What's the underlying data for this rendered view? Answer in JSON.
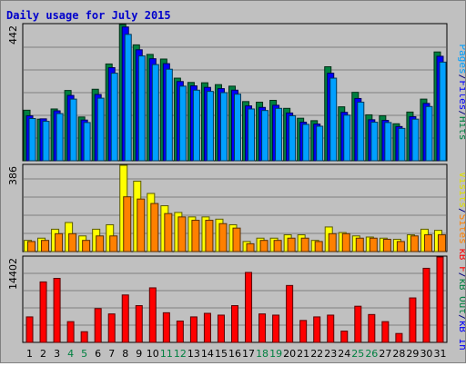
{
  "chart_data": {
    "type": "bar",
    "title": "Daily usage for July 2015",
    "categories": [
      "1",
      "2",
      "3",
      "4",
      "5",
      "6",
      "7",
      "8",
      "9",
      "10",
      "11",
      "12",
      "13",
      "14",
      "15",
      "16",
      "17",
      "18",
      "19",
      "20",
      "21",
      "22",
      "23",
      "24",
      "25",
      "26",
      "27",
      "28",
      "29",
      "30",
      "31"
    ],
    "weekend_days": [
      "4",
      "5",
      "11",
      "12",
      "18",
      "19",
      "25",
      "26"
    ],
    "panels": [
      {
        "name": "top",
        "max_label": "442",
        "ylim": [
          0,
          442
        ],
        "right_label_parts": [
          {
            "text": "Pages",
            "color": "#00a0ff"
          },
          {
            "text": "/",
            "color": "#000080"
          },
          {
            "text": "Files",
            "color": "#0000ff"
          },
          {
            "text": "/",
            "color": "#000080"
          },
          {
            "text": "Hits",
            "color": "#008040"
          }
        ],
        "series": [
          {
            "name": "Hits",
            "color": "#008040",
            "values": [
              164,
              135,
              168,
              228,
              142,
              232,
              314,
              442,
              376,
              345,
              330,
              268,
              254,
              253,
              247,
              242,
              192,
              190,
              196,
              170,
              138,
              130,
              305,
              175,
              222,
              149,
              146,
              120,
              158,
              200,
              353
            ]
          },
          {
            "name": "Files",
            "color": "#0000ff",
            "values": [
              146,
              136,
              162,
              212,
              132,
              215,
              302,
              434,
              360,
              331,
              315,
              257,
              243,
              238,
              234,
              229,
              178,
              173,
              180,
              155,
              125,
              119,
              284,
              157,
              202,
              133,
              131,
              111,
              143,
              186,
              339
            ]
          },
          {
            "name": "Pages",
            "color": "#00a0ff",
            "values": [
              137,
              128,
              153,
              200,
              124,
              203,
              284,
              410,
              340,
              312,
              297,
              242,
              229,
              225,
              221,
              216,
              168,
              163,
              170,
              146,
              118,
              112,
              268,
              148,
              190,
              125,
              124,
              105,
              135,
              176,
              320
            ]
          }
        ]
      },
      {
        "name": "middle",
        "max_label": "386",
        "ylim": [
          0,
          386
        ],
        "right_label_parts": [
          {
            "text": "Visits",
            "color": "#e0e000"
          },
          {
            "text": "/",
            "color": "#000080"
          },
          {
            "text": "Sites",
            "color": "#ff8000"
          }
        ],
        "series": [
          {
            "name": "Visits",
            "color": "#ffff00",
            "values": [
              50,
              60,
              100,
              130,
              70,
              100,
              120,
              386,
              315,
              260,
              205,
              175,
              155,
              155,
              145,
              120,
              45,
              60,
              60,
              75,
              75,
              50,
              110,
              85,
              70,
              65,
              60,
              55,
              75,
              100,
              95
            ]
          },
          {
            "name": "Sites",
            "color": "#ff8000",
            "values": [
              45,
              50,
              80,
              80,
              50,
              70,
              70,
              245,
              235,
              215,
              170,
              155,
              140,
              140,
              125,
              105,
              35,
              50,
              50,
              60,
              60,
              45,
              80,
              80,
              60,
              60,
              55,
              45,
              70,
              75,
              75
            ]
          }
        ]
      },
      {
        "name": "bottom",
        "max_label": "14402",
        "ylim": [
          0,
          14402
        ],
        "right_label_parts": [
          {
            "text": "kB F",
            "color": "#ff0000"
          },
          {
            "text": "/",
            "color": "#000080"
          },
          {
            "text": "kB Out",
            "color": "#008040"
          },
          {
            "text": "/",
            "color": "#000080"
          },
          {
            "text": "kB In",
            "color": "#0000ff"
          }
        ],
        "series": [
          {
            "name": "kB F",
            "color": "#ff0000",
            "values": [
              4300,
              10200,
              10800,
              3500,
              1800,
              5700,
              4800,
              8000,
              6200,
              9200,
              5000,
              3600,
              4300,
              4900,
              4600,
              6200,
              11800,
              4800,
              4600,
              9600,
              3700,
              4300,
              4600,
              1900,
              6100,
              4700,
              3500,
              1500,
              7500,
              12500,
              14402
            ]
          }
        ]
      }
    ]
  }
}
